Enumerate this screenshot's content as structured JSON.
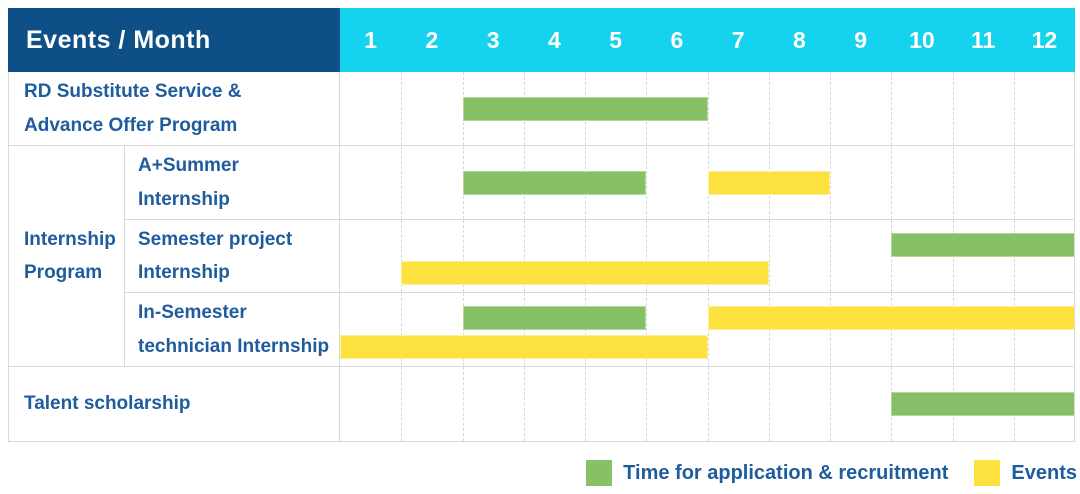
{
  "header": {
    "title": "Events / Month",
    "months": [
      "1",
      "2",
      "3",
      "4",
      "5",
      "6",
      "7",
      "8",
      "9",
      "10",
      "11",
      "12"
    ]
  },
  "rows": [
    {
      "label": "RD Substitute Service &\nAdvance Offer Program",
      "bands": [
        [
          {
            "start": 3,
            "end": 6,
            "type": "application"
          }
        ]
      ]
    },
    {
      "group": "Internship\nProgram",
      "group_span": 3,
      "label": "A+Summer\nInternship",
      "bands": [
        [
          {
            "start": 3,
            "end": 5,
            "type": "application"
          },
          {
            "start": 7,
            "end": 8,
            "type": "event"
          }
        ]
      ]
    },
    {
      "label": "Semester project\nInternship",
      "bands": [
        [
          {
            "start": 10,
            "end": 12,
            "type": "application"
          }
        ],
        [
          {
            "start": 2,
            "end": 7,
            "type": "event"
          }
        ]
      ]
    },
    {
      "label": "In-Semester\ntechnician Internship",
      "bands": [
        [
          {
            "start": 3,
            "end": 5,
            "type": "application"
          },
          {
            "start": 7,
            "end": 12,
            "type": "event"
          }
        ],
        [
          {
            "start": 1,
            "end": 6,
            "type": "event"
          }
        ]
      ]
    },
    {
      "label": "Talent scholarship",
      "bands": [
        [
          {
            "start": 10,
            "end": 12,
            "type": "application"
          }
        ]
      ]
    }
  ],
  "legend": [
    {
      "type": "application",
      "label": "Time for application & recruitment"
    },
    {
      "type": "event",
      "label": "Events"
    }
  ],
  "colors": {
    "application": "#87c167",
    "event": "#fde23f",
    "header_bg": "#0e4f87",
    "months_bg": "#15d2ee",
    "label_text": "#1e5c9e"
  },
  "chart_data": {
    "type": "table",
    "title": "Events / Month",
    "x_unit": "month",
    "x_range": [
      1,
      12
    ],
    "legend": {
      "green": "Time for application & recruitment",
      "yellow": "Events"
    },
    "rows": [
      {
        "event": "RD Substitute Service & Advance Offer Program",
        "bars": [
          {
            "months": [
              3,
              6
            ],
            "kind": "Time for application & recruitment"
          }
        ]
      },
      {
        "event": "Internship Program - A+Summer Internship",
        "bars": [
          {
            "months": [
              3,
              5
            ],
            "kind": "Time for application & recruitment"
          },
          {
            "months": [
              7,
              8
            ],
            "kind": "Events"
          }
        ]
      },
      {
        "event": "Internship Program - Semester project Internship",
        "bars": [
          {
            "months": [
              10,
              12
            ],
            "kind": "Time for application & recruitment"
          },
          {
            "months": [
              2,
              7
            ],
            "kind": "Events"
          }
        ]
      },
      {
        "event": "Internship Program - In-Semester technician Internship",
        "bars": [
          {
            "months": [
              3,
              5
            ],
            "kind": "Time for application & recruitment"
          },
          {
            "months": [
              7,
              12
            ],
            "kind": "Events"
          },
          {
            "months": [
              1,
              6
            ],
            "kind": "Events"
          }
        ]
      },
      {
        "event": "Talent scholarship",
        "bars": [
          {
            "months": [
              10,
              12
            ],
            "kind": "Time for application & recruitment"
          }
        ]
      }
    ]
  }
}
